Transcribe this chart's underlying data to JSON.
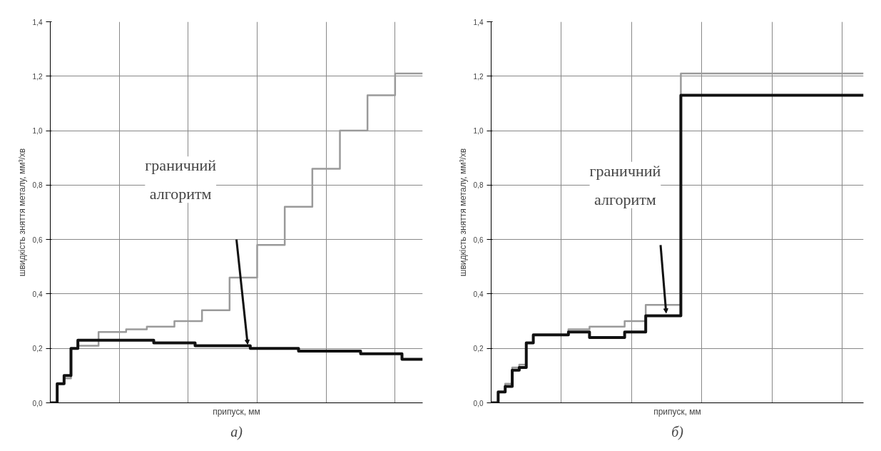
{
  "chart_data": [
    {
      "type": "step",
      "title": "а)",
      "ylabel": "швидкість зняття металу, мм³/хв",
      "xlabel": "припуск, мм",
      "categories": [
        null,
        null,
        null,
        null,
        null,
        null,
        null,
        null,
        null,
        null,
        null,
        null,
        null,
        null,
        null,
        null,
        null,
        null,
        null,
        null,
        null,
        null,
        null,
        null,
        null,
        null,
        null,
        null,
        null,
        null,
        null,
        null,
        null,
        null,
        null,
        null,
        null,
        null,
        null,
        null,
        null,
        null,
        null,
        null,
        null,
        null,
        null,
        null,
        null,
        null,
        null,
        null,
        null,
        null,
        null
      ],
      "series": [
        {
          "color": "#9a9a9a",
          "values": [
            0,
            0.07,
            0.09,
            0.2,
            0.21,
            0.21,
            0.21,
            0.26,
            0.26,
            0.26,
            0.26,
            0.27,
            0.27,
            0.27,
            0.28,
            0.28,
            0.28,
            0.28,
            0.3,
            0.3,
            0.3,
            0.3,
            0.34,
            0.34,
            0.34,
            0.34,
            0.46,
            0.46,
            0.46,
            0.46,
            0.58,
            0.58,
            0.58,
            0.58,
            0.72,
            0.72,
            0.72,
            0.72,
            0.86,
            0.86,
            0.86,
            0.86,
            1.0,
            1.0,
            1.0,
            1.0,
            1.13,
            1.13,
            1.13,
            1.13,
            1.21,
            1.21,
            1.21,
            1.21,
            1.21
          ]
        },
        {
          "color": "#111111",
          "values": [
            0,
            0.07,
            0.1,
            0.2,
            0.23,
            0.23,
            0.23,
            0.23,
            0.23,
            0.23,
            0.23,
            0.23,
            0.23,
            0.23,
            0.23,
            0.22,
            0.22,
            0.22,
            0.22,
            0.22,
            0.22,
            0.21,
            0.21,
            0.21,
            0.21,
            0.21,
            0.21,
            0.21,
            0.21,
            0.2,
            0.2,
            0.2,
            0.2,
            0.2,
            0.2,
            0.2,
            0.19,
            0.19,
            0.19,
            0.19,
            0.19,
            0.19,
            0.19,
            0.19,
            0.19,
            0.18,
            0.18,
            0.18,
            0.18,
            0.18,
            0.18,
            0.16,
            0.16,
            0.16,
            0.16
          ]
        }
      ],
      "ylim": [
        0,
        1.4
      ],
      "yticks": [
        {
          "value": 0,
          "label": "0,0"
        },
        {
          "value": 0.2,
          "label": "0,2"
        },
        {
          "value": 0.4,
          "label": "0,4"
        },
        {
          "value": 0.6,
          "label": "0,6"
        },
        {
          "value": 0.8,
          "label": "0,8"
        },
        {
          "value": 1.0,
          "label": "1,0"
        },
        {
          "value": 1.2,
          "label": "1,2"
        },
        {
          "value": 1.4,
          "label": "1,4"
        }
      ],
      "grid": true,
      "annotations": [
        "граничний\nалгоритм"
      ]
    },
    {
      "type": "step",
      "title": "б)",
      "ylabel": "швидкість зняття металу, мм³/хв",
      "xlabel": "припуск, мм",
      "categories": [
        null,
        null,
        null,
        null,
        null,
        null,
        null,
        null,
        null,
        null,
        null,
        null,
        null,
        null,
        null,
        null,
        null,
        null,
        null,
        null,
        null,
        null,
        null,
        null,
        null,
        null,
        null,
        null,
        null,
        null,
        null,
        null,
        null,
        null,
        null,
        null,
        null,
        null,
        null,
        null,
        null,
        null,
        null,
        null,
        null,
        null,
        null,
        null,
        null,
        null,
        null,
        null,
        null,
        null
      ],
      "series": [
        {
          "color": "#9a9a9a",
          "values": [
            0,
            0.04,
            0.07,
            0.13,
            0.14,
            0.22,
            0.25,
            0.25,
            0.25,
            0.25,
            0.25,
            0.27,
            0.27,
            0.27,
            0.28,
            0.28,
            0.28,
            0.28,
            0.28,
            0.3,
            0.3,
            0.3,
            0.36,
            0.36,
            0.36,
            0.36,
            0.36,
            1.21,
            1.21,
            1.21,
            1.21,
            1.21,
            1.21,
            1.21,
            1.21,
            1.21,
            1.21,
            1.21,
            1.21,
            1.21,
            1.21,
            1.21,
            1.21,
            1.21,
            1.21,
            1.21,
            1.21,
            1.21,
            1.21,
            1.21,
            1.21,
            1.21,
            1.21,
            1.21
          ]
        },
        {
          "color": "#111111",
          "values": [
            0,
            0.04,
            0.06,
            0.12,
            0.13,
            0.22,
            0.25,
            0.25,
            0.25,
            0.25,
            0.25,
            0.26,
            0.26,
            0.26,
            0.24,
            0.24,
            0.24,
            0.24,
            0.24,
            0.26,
            0.26,
            0.26,
            0.32,
            0.32,
            0.32,
            0.32,
            0.32,
            1.13,
            1.13,
            1.13,
            1.13,
            1.13,
            1.13,
            1.13,
            1.13,
            1.13,
            1.13,
            1.13,
            1.13,
            1.13,
            1.13,
            1.13,
            1.13,
            1.13,
            1.13,
            1.13,
            1.13,
            1.13,
            1.13,
            1.13,
            1.13,
            1.13,
            1.13,
            1.13
          ]
        }
      ],
      "ylim": [
        0,
        1.4
      ],
      "yticks": [
        {
          "value": 0,
          "label": "0,0"
        },
        {
          "value": 0.2,
          "label": "0,2"
        },
        {
          "value": 0.4,
          "label": "0,4"
        },
        {
          "value": 0.6,
          "label": "0,6"
        },
        {
          "value": 0.8,
          "label": "0,8"
        },
        {
          "value": 1.0,
          "label": "1,0"
        },
        {
          "value": 1.2,
          "label": "1,2"
        },
        {
          "value": 1.4,
          "label": "1,4"
        }
      ],
      "grid": true,
      "annotations": [
        "граничний\nалгоритм"
      ]
    }
  ]
}
